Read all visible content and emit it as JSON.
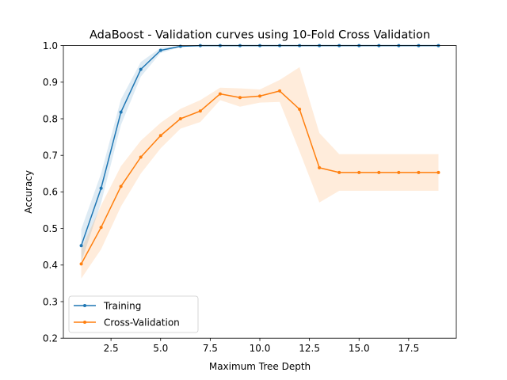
{
  "chart_data": {
    "type": "line",
    "title": "AdaBoost - Validation curves using 10-Fold Cross Validation",
    "xlabel": "Maximum Tree Depth",
    "ylabel": "Accuracy",
    "xlim": [
      0.1,
      19.9
    ],
    "ylim": [
      0.2,
      1.0
    ],
    "xticks": [
      2.5,
      5.0,
      7.5,
      10.0,
      12.5,
      15.0,
      17.5
    ],
    "xtick_labels": [
      "2.5",
      "5.0",
      "7.5",
      "10.0",
      "12.5",
      "15.0",
      "17.5"
    ],
    "yticks": [
      0.2,
      0.3,
      0.4,
      0.5,
      0.6,
      0.7,
      0.8,
      0.9,
      1.0
    ],
    "ytick_labels": [
      "0.2",
      "0.3",
      "0.4",
      "0.5",
      "0.6",
      "0.7",
      "0.8",
      "0.9",
      "1.0"
    ],
    "grid": false,
    "legend_position": "lower-left",
    "x": [
      1,
      2,
      3,
      4,
      5,
      6,
      7,
      8,
      9,
      10,
      11,
      12,
      13,
      14,
      15,
      16,
      17,
      18,
      19
    ],
    "series": [
      {
        "name": "Training",
        "color": "#1f77b4",
        "values": [
          0.453,
          0.61,
          0.818,
          0.935,
          0.987,
          0.998,
          1.0,
          1.0,
          1.0,
          1.0,
          1.0,
          1.0,
          1.0,
          1.0,
          1.0,
          1.0,
          1.0,
          1.0,
          1.0
        ],
        "std": [
          0.045,
          0.04,
          0.035,
          0.02,
          0.007,
          0.002,
          0.0,
          0.0,
          0.0,
          0.0,
          0.0,
          0.0,
          0.0,
          0.0,
          0.0,
          0.0,
          0.0,
          0.0,
          0.0
        ]
      },
      {
        "name": "Cross-Validation",
        "color": "#ff7f0e",
        "values": [
          0.403,
          0.503,
          0.615,
          0.695,
          0.754,
          0.8,
          0.821,
          0.868,
          0.858,
          0.862,
          0.876,
          0.826,
          0.666,
          0.653,
          0.653,
          0.653,
          0.653,
          0.653,
          0.653
        ],
        "std": [
          0.04,
          0.06,
          0.055,
          0.045,
          0.035,
          0.027,
          0.03,
          0.017,
          0.025,
          0.018,
          0.03,
          0.115,
          0.095,
          0.05,
          0.05,
          0.05,
          0.05,
          0.05,
          0.05
        ]
      }
    ]
  }
}
